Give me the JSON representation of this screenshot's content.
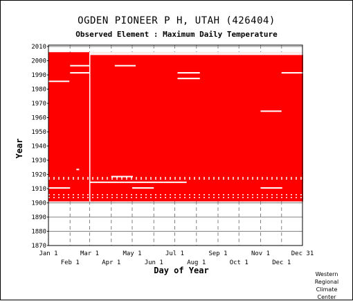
{
  "header": {
    "title": "OGDEN PIONEER P H, UTAH   (426404)",
    "subtitle": "Observed Element : Maximum Daily Temperature"
  },
  "credit": [
    "Western",
    "Regional",
    "Climate",
    "Center"
  ],
  "colors": {
    "data": "#ff0000",
    "gap": "#ffffff",
    "grid": "#808080",
    "axis": "#000000"
  },
  "chart_data": {
    "type": "heatmap",
    "title": "OGDEN PIONEER P H, UTAH   (426404)",
    "subtitle": "Observed Element : Maximum Daily Temperature",
    "xlabel": "Day of Year",
    "ylabel": "Year",
    "xlim": [
      1,
      365
    ],
    "ylim": [
      1870,
      2011
    ],
    "x_ticks_top": [
      {
        "label": "Jan 1",
        "day": 1
      },
      {
        "label": "Mar 1",
        "day": 60
      },
      {
        "label": "May 1",
        "day": 121
      },
      {
        "label": "Jul 1",
        "day": 182
      },
      {
        "label": "Sep 1",
        "day": 244
      },
      {
        "label": "Nov 1",
        "day": 305
      },
      {
        "label": "Dec 31",
        "day": 365
      }
    ],
    "x_ticks_bottom": [
      {
        "label": "Feb 1",
        "day": 32
      },
      {
        "label": "Apr 1",
        "day": 91
      },
      {
        "label": "Jun 1",
        "day": 152
      },
      {
        "label": "Aug 1",
        "day": 213
      },
      {
        "label": "Oct 1",
        "day": 274
      },
      {
        "label": "Dec 1",
        "day": 335
      }
    ],
    "y_ticks": [
      1870,
      1880,
      1890,
      1900,
      1910,
      1920,
      1930,
      1940,
      1950,
      1960,
      1970,
      1980,
      1990,
      2000,
      2010
    ],
    "grid": true,
    "data_coverage": [
      {
        "from_year": 1901,
        "to_year": 2005,
        "from_day": 1,
        "to_day": 365
      }
    ],
    "missing_segments": [
      {
        "year": 1985,
        "from_day": 1,
        "to_day": 30
      },
      {
        "year": 1996,
        "from_day": 32,
        "to_day": 59
      },
      {
        "year": 1991,
        "from_day": 32,
        "to_day": 59
      },
      {
        "year": 1996,
        "from_day": 96,
        "to_day": 125
      },
      {
        "year": 1991,
        "from_day": 186,
        "to_day": 217
      },
      {
        "year": 1987,
        "from_day": 186,
        "to_day": 217
      },
      {
        "year": 1991,
        "from_day": 335,
        "to_day": 365
      },
      {
        "year": 1964,
        "from_day": 305,
        "to_day": 334
      },
      {
        "year": 1923,
        "from_day": 41,
        "to_day": 44
      },
      {
        "year": 1918,
        "from_day": 91,
        "to_day": 121
      },
      {
        "year": 1914,
        "from_day": 60,
        "to_day": 198
      },
      {
        "year": 1910,
        "from_day": 1,
        "to_day": 31
      },
      {
        "year": 1910,
        "from_day": 121,
        "to_day": 151
      },
      {
        "year": 1910,
        "from_day": 305,
        "to_day": 335
      },
      {
        "year": 2005,
        "from_day": 60,
        "to_day": 365
      },
      {
        "year": 2004,
        "from_day": 60,
        "to_day": 365
      }
    ],
    "scattered_gap_rows": [
      1917,
      1916,
      1905,
      1903
    ],
    "missing_columns": [
      {
        "from_year": 1901,
        "to_year": 2005,
        "day": 60
      }
    ]
  }
}
